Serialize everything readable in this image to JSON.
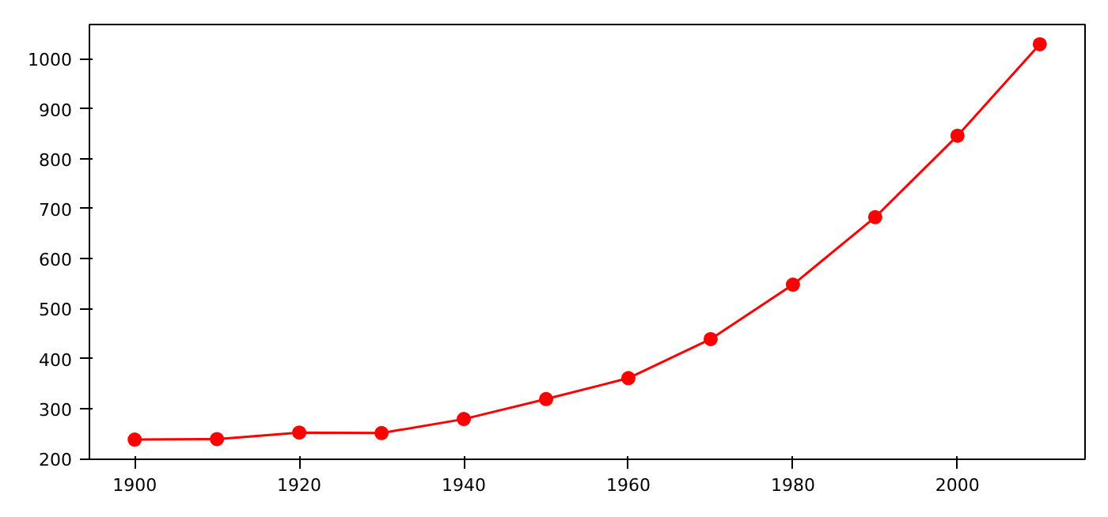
{
  "chart_data": {
    "type": "line",
    "x": [
      1900,
      1910,
      1920,
      1930,
      1940,
      1950,
      1960,
      1970,
      1980,
      1990,
      2000,
      2010
    ],
    "series": [
      {
        "color": "#ff0000",
        "values": [
          238,
          239,
          252,
          251,
          279,
          319,
          361,
          439,
          548,
          683,
          846,
          1029
        ]
      }
    ],
    "xlim": [
      1894.5,
      2015.5
    ],
    "ylim": [
      198.5,
      1068.5
    ],
    "xticks": [
      1900,
      1920,
      1940,
      1960,
      1980,
      2000
    ],
    "yticks": [
      200,
      300,
      400,
      500,
      600,
      700,
      800,
      900,
      1000
    ],
    "marker": "circle",
    "line_style": "solid",
    "grid": false
  }
}
